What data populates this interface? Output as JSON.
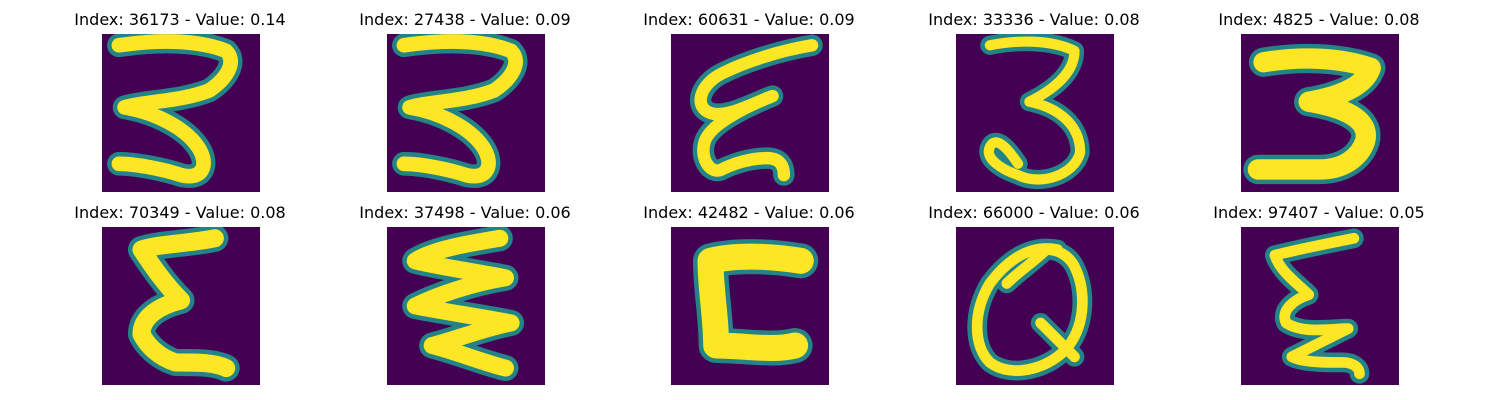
{
  "colors": {
    "background": "#440154",
    "mid": "#21918c",
    "high": "#fde725"
  },
  "chart_data": {
    "type": "image-grid",
    "grid": {
      "rows": 2,
      "cols": 5
    },
    "colormap": "viridis",
    "panels": [
      {
        "title": "Index: 36173 - Value: 0.14",
        "index": 36173,
        "value": 0.14,
        "glyph": "3-sharp"
      },
      {
        "title": "Index: 27438 - Value: 0.09",
        "index": 27438,
        "value": 0.09,
        "glyph": "3-sharp"
      },
      {
        "title": "Index: 60631 - Value: 0.09",
        "index": 60631,
        "value": 0.09,
        "glyph": "epsilon-slant"
      },
      {
        "title": "Index: 33336 - Value: 0.08",
        "index": 33336,
        "value": 0.08,
        "glyph": "3-round"
      },
      {
        "title": "Index: 4825 - Value: 0.08",
        "index": 4825,
        "value": 0.08,
        "glyph": "3-bold"
      },
      {
        "title": "Index: 70349 - Value: 0.08",
        "index": 70349,
        "value": 0.08,
        "glyph": "epsilon-bold"
      },
      {
        "title": "Index: 37498 - Value: 0.06",
        "index": 37498,
        "value": 0.06,
        "glyph": "zigzag"
      },
      {
        "title": "Index: 42482 - Value: 0.06",
        "index": 42482,
        "value": 0.06,
        "glyph": "c-bold"
      },
      {
        "title": "Index: 66000 - Value: 0.06",
        "index": 66000,
        "value": 0.06,
        "glyph": "q-loop"
      },
      {
        "title": "Index: 97407 - Value: 0.05",
        "index": 97407,
        "value": 0.05,
        "glyph": "epsilon-thin"
      }
    ]
  }
}
